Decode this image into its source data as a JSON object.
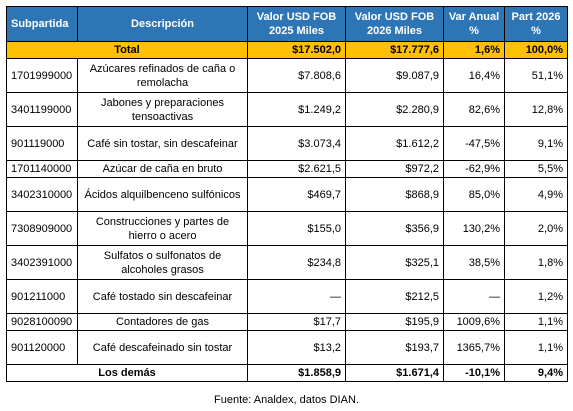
{
  "table": {
    "header": [
      "Subpartida",
      "Descripción",
      "Valor USD FOB 2025 Miles",
      "Valor USD FOB 2026 Miles",
      "Var Anual %",
      "Part 2026 %"
    ],
    "total": [
      "Total",
      "$17.502,0",
      "$17.777,6",
      "1,6%",
      "100,0%"
    ],
    "rows": [
      [
        "1701999000",
        "Azúcares refinados de caña o remolacha",
        "$7.808,6",
        "$9.087,9",
        "16,4%",
        "51,1%"
      ],
      [
        "3401199000",
        "Jabones y preparaciones tensoactivas",
        "$1.249,2",
        "$2.280,9",
        "82,6%",
        "12,8%"
      ],
      [
        "901119000",
        "Café sin tostar, sin descafeinar",
        "$3.073,4",
        "$1.612,2",
        "-47,5%",
        "9,1%"
      ],
      [
        "1701140000",
        "Azúcar de caña en bruto",
        "$2.621,5",
        "$972,2",
        "-62,9%",
        "5,5%"
      ],
      [
        "3402310000",
        "Ácidos alquilbenceno sulfónicos",
        "$469,7",
        "$868,9",
        "85,0%",
        "4,9%"
      ],
      [
        "7308909000",
        "Construcciones y partes de hierro o acero",
        "$155,0",
        "$356,9",
        "130,2%",
        "2,0%"
      ],
      [
        "3402391000",
        "Sulfatos o sulfonatos de alcoholes grasos",
        "$234,8",
        "$325,1",
        "38,5%",
        "1,8%"
      ],
      [
        "901211000",
        "Café tostado sin descafeinar",
        "—",
        "$212,5",
        "—",
        "1,2%"
      ],
      [
        "9028100090",
        "Contadores de gas",
        "$17,7",
        "$195,9",
        "1009,6%",
        "1,1%"
      ],
      [
        "901120000",
        "Café descafeinado sin tostar",
        "$13,2",
        "$193,7",
        "1365,7%",
        "1,1%"
      ]
    ],
    "others": [
      "Los demás",
      "$1.858,9",
      "$1.671,4",
      "-10,1%",
      "9,4%"
    ],
    "source": "Fuente: Analdex, datos DIAN."
  }
}
